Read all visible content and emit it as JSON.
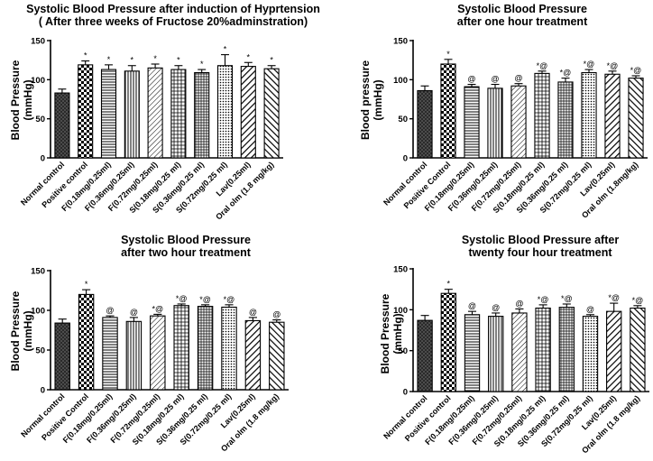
{
  "chart_data": [
    {
      "type": "bar",
      "title": [
        "Systolic Blood Pressure after induction of Hyprtension",
        "( After three weeks of Fructose 20%adminstration)"
      ],
      "ylabel": [
        "Blood Pressure",
        "(mmHg)"
      ],
      "xlabel": "",
      "ylim": [
        0,
        150
      ],
      "yticks": [
        "0",
        "50",
        "100",
        "150"
      ],
      "categories": [
        "Normal control",
        "Positive control",
        "F(0.18mg/0.25ml)",
        "F(0.36mg/0.25ml)",
        "F(0.72mg/0.25ml)",
        "S(0.18mg/0.25 ml)",
        "S(0.36mg/0.25 ml)",
        "S(0.72mg/0.25 ml)",
        "Lav(0.25ml)",
        "Oral olm (1.8 mg/kg)"
      ],
      "values": [
        83,
        119,
        113,
        111,
        115,
        113,
        109,
        118,
        117,
        114
      ],
      "errors": [
        5,
        5,
        6,
        7,
        5,
        5,
        4,
        14,
        5,
        4
      ],
      "significance": [
        "",
        "*",
        "*",
        "*",
        "*",
        "*",
        "*",
        "*",
        "*",
        "*"
      ]
    },
    {
      "type": "bar",
      "title": [
        "Systolic Blood Pressure",
        "after one hour treatment"
      ],
      "ylabel": [
        "Blood pressure",
        "(mmHg)"
      ],
      "xlabel": "",
      "ylim": [
        0,
        150
      ],
      "yticks": [
        "0",
        "50",
        "100",
        "150"
      ],
      "categories": [
        "Normal control",
        "Positive Control",
        "F(0.18mg/0.25ml)",
        "F(0.36mg/0.25ml)",
        "F(0.72mg/0.25ml)",
        "S(0.18mg/0.25 ml)",
        "S(0.36mg/0.25 ml)",
        "S(0.72mg/0.25 ml)",
        "Lav(0.25ml)",
        "Oral olm (1.8mg/kg)"
      ],
      "values": [
        86,
        120,
        91,
        89,
        92,
        108,
        97,
        109,
        107,
        102
      ],
      "errors": [
        6,
        6,
        3,
        5,
        3,
        3,
        5,
        4,
        4,
        3
      ],
      "significance": [
        "",
        "*",
        "@",
        "@",
        "@",
        "*@",
        "*@",
        "*@",
        "*@",
        "*@"
      ]
    },
    {
      "type": "bar",
      "title": [
        "Systolic Blood Pressure",
        "after two hour treatment"
      ],
      "ylabel": [
        "Blood Pressure",
        "(mmHg)"
      ],
      "xlabel": "",
      "ylim": [
        0,
        150
      ],
      "yticks": [
        "0",
        "50",
        "100",
        "150"
      ],
      "categories": [
        "Normal control",
        "Positive Control",
        "F(0.18mg/0.25ml)",
        "F(0.36mg/0.25ml)",
        "F(0.72mg/0.25ml)",
        "S(0.18mg/0.25 ml)",
        "S(0.36mg/0.25 ml)",
        "S(0.72mg/0.25 ml)",
        "Lav(0.25ml)",
        "Oral olm (1.8 mg/kg)"
      ],
      "values": [
        84,
        120,
        91,
        86,
        93,
        106,
        105,
        104,
        87,
        85
      ],
      "errors": [
        5,
        6,
        2,
        5,
        2,
        2,
        2,
        3,
        4,
        3
      ],
      "significance": [
        "",
        "*",
        "@",
        "@",
        "*@",
        "*@",
        "*@",
        "*@",
        "@",
        "@"
      ]
    },
    {
      "type": "bar",
      "title": [
        "Systolic Blood Pressure after",
        "twenty four hour treatment"
      ],
      "ylabel": [
        "Blood Pressure",
        "(mmHg)"
      ],
      "xlabel": "",
      "ylim": [
        0,
        150
      ],
      "yticks": [
        "0",
        "50",
        "100",
        "150"
      ],
      "categories": [
        "Normal control",
        "Positive control",
        "F(0.18mg/0.25ml)",
        "F(0.36mg/0.25ml)",
        "F(0.72mg/0.25ml)",
        "S(0.18mg/0.25 ml)",
        "S(0.36mg/0.25 ml)",
        "S(0.72mg/0.25 ml)",
        "Lav(0.25ml)",
        "Oral olm (1.8 mg/kg)"
      ],
      "values": [
        87,
        120,
        94,
        92,
        96,
        102,
        103,
        92,
        98,
        102
      ],
      "errors": [
        6,
        5,
        4,
        4,
        5,
        4,
        4,
        2,
        10,
        3
      ],
      "significance": [
        "",
        "*",
        "@",
        "@",
        "@",
        "*@",
        "*@",
        "@",
        "*@",
        "*@"
      ]
    }
  ]
}
